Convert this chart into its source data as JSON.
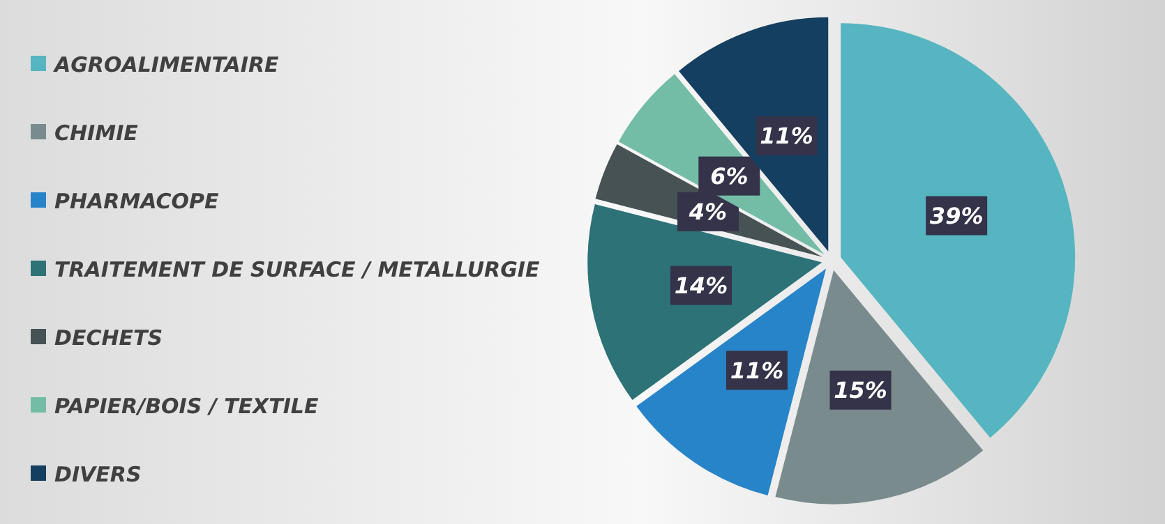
{
  "chart_data": {
    "type": "pie",
    "categories": [
      "AGROALIMENTAIRE",
      "CHIMIE",
      "PHARMACOPE",
      "TRAITEMENT DE SURFACE / METALLURGIE",
      "DECHETS",
      "PAPIER/BOIS / TEXTILE",
      "DIVERS"
    ],
    "values": [
      39,
      15,
      11,
      14,
      4,
      6,
      11
    ],
    "colors": [
      "#56b5c0",
      "#798b8c",
      "#2884c8",
      "#2c7277",
      "#475255",
      "#73bda6",
      "#143f61"
    ],
    "value_labels": [
      "39%",
      "15%",
      "11%",
      "14%",
      "4%",
      "6%",
      "11%"
    ],
    "legend": "left"
  }
}
